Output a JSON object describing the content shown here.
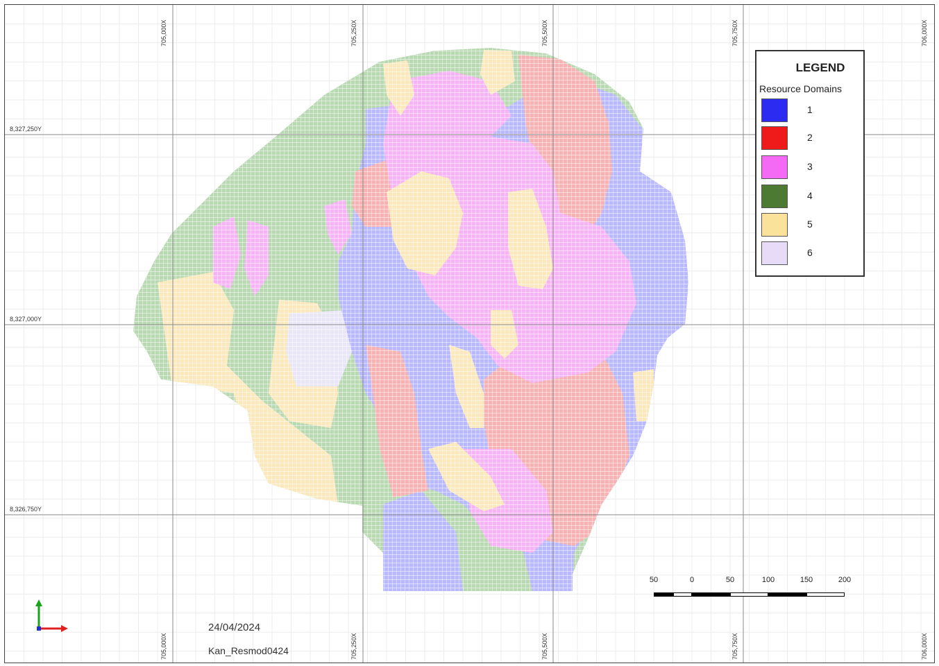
{
  "map": {
    "x_coords": [
      "705,000X",
      "705,250X",
      "705,500X",
      "705,750X",
      "706,000X"
    ],
    "y_coords": [
      "8,327,250Y",
      "8,327,000Y",
      "8,326,750Y"
    ],
    "date": "24/04/2024",
    "model_name": "Kan_Resmod0424"
  },
  "legend": {
    "title": "LEGEND",
    "subtitle": "Resource Domains",
    "items": [
      {
        "label": "1",
        "color": "#2b2bf2"
      },
      {
        "label": "2",
        "color": "#ef1a1a"
      },
      {
        "label": "3",
        "color": "#f56af5"
      },
      {
        "label": "4",
        "color": "#4d7a33"
      },
      {
        "label": "5",
        "color": "#fbe29b"
      },
      {
        "label": "6",
        "color": "#e6dcf7"
      }
    ]
  },
  "scale_bar": {
    "labels": [
      "50",
      "0",
      "50",
      "100",
      "150",
      "200"
    ]
  },
  "domain_colors": {
    "1": "#b9b9ff",
    "2": "#f7b3b3",
    "3": "#f6b3f5",
    "4": "#b8d9b2",
    "5": "#fbe9bd",
    "6": "#e9e6f7"
  }
}
